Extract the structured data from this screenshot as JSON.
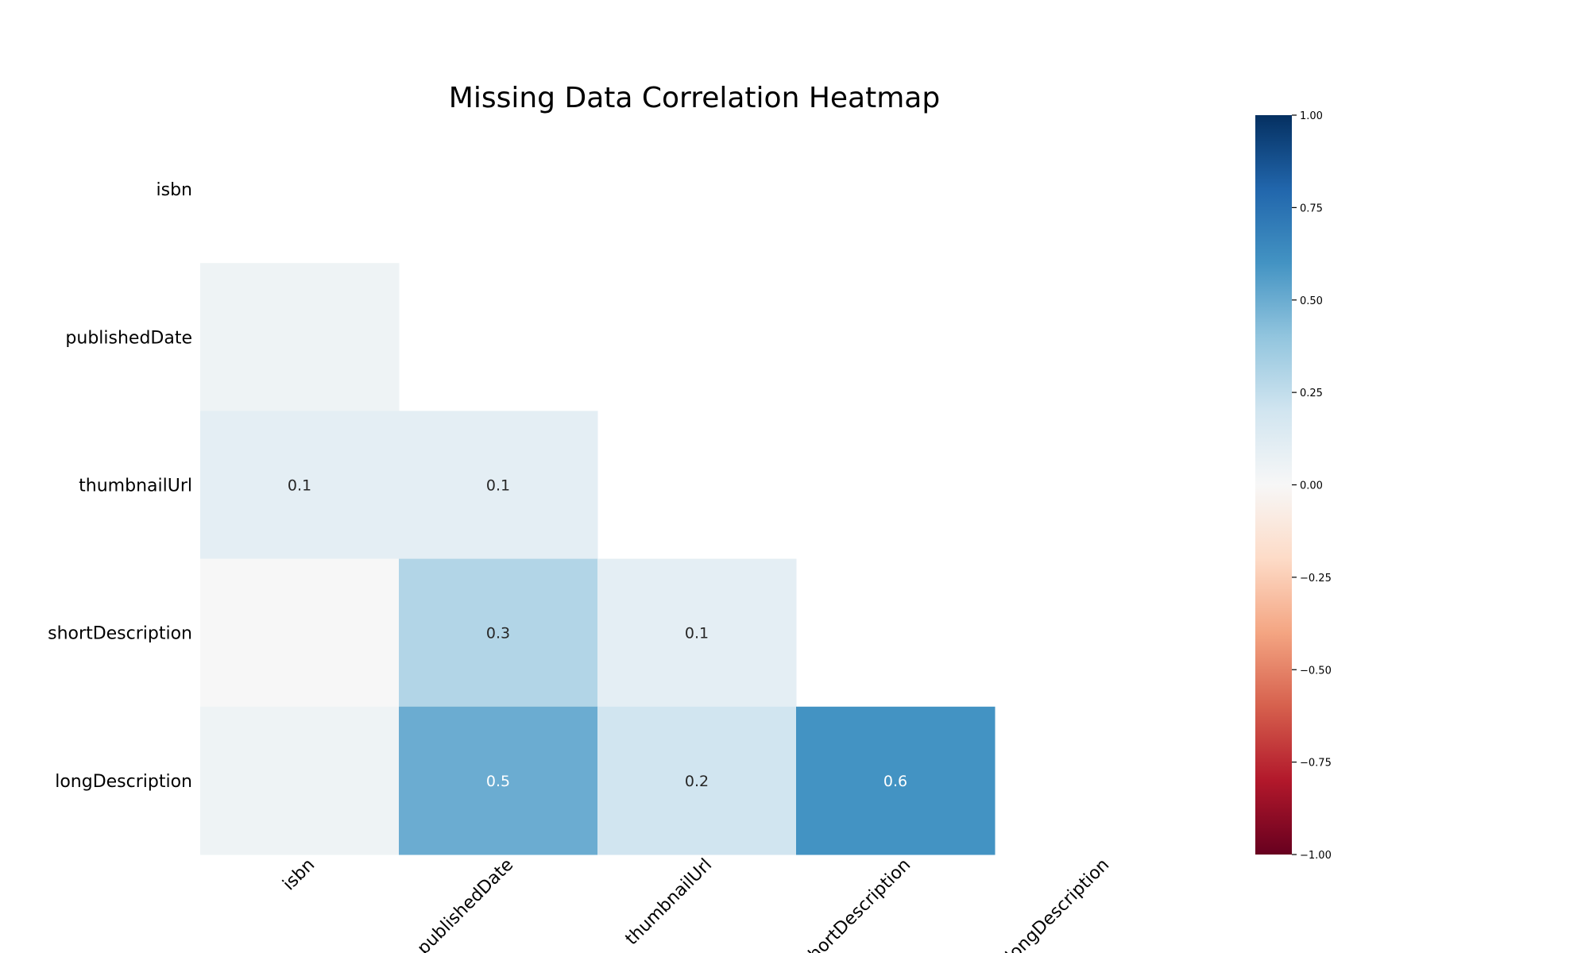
{
  "chart_data": {
    "type": "heatmap",
    "title": "Missing Data Correlation Heatmap",
    "row_labels": [
      "isbn",
      "publishedDate",
      "thumbnailUrl",
      "shortDescription",
      "longDescription"
    ],
    "col_labels": [
      "isbn",
      "publishedDate",
      "thumbnailUrl",
      "shortDescription",
      "longDescription"
    ],
    "mask": "upper-triangle-including-diagonal",
    "values": [
      [
        null,
        null,
        null,
        null,
        null
      ],
      [
        0.05,
        null,
        null,
        null,
        null
      ],
      [
        0.1,
        0.1,
        null,
        null,
        null
      ],
      [
        0.0,
        0.3,
        0.1,
        null,
        null
      ],
      [
        0.05,
        0.5,
        0.2,
        0.6,
        null
      ]
    ],
    "cell_labels": [
      [
        "",
        "",
        "",
        "",
        ""
      ],
      [
        "",
        "",
        "",
        "",
        ""
      ],
      [
        "0.1",
        "0.1",
        "",
        "",
        ""
      ],
      [
        "",
        "0.3",
        "0.1",
        "",
        ""
      ],
      [
        "",
        "0.5",
        "0.2",
        "0.6",
        ""
      ]
    ],
    "colormap": "RdBu",
    "colorbar": {
      "min": -1.0,
      "max": 1.0,
      "ticks": [
        1.0,
        0.75,
        0.5,
        0.25,
        0.0,
        -0.25,
        -0.5,
        -0.75,
        -1.0
      ],
      "tick_labels": [
        "1.00",
        "0.75",
        "0.50",
        "0.25",
        "0.00",
        "−0.25",
        "−0.50",
        "−0.75",
        "−1.00"
      ],
      "stops": [
        "#67001f",
        "#b2182b",
        "#d6604d",
        "#f4a582",
        "#fddbc7",
        "#f7f7f7",
        "#d1e5f0",
        "#92c5de",
        "#4393c3",
        "#2166ac",
        "#053061"
      ]
    },
    "grid": false,
    "legend": "colorbar-right"
  }
}
